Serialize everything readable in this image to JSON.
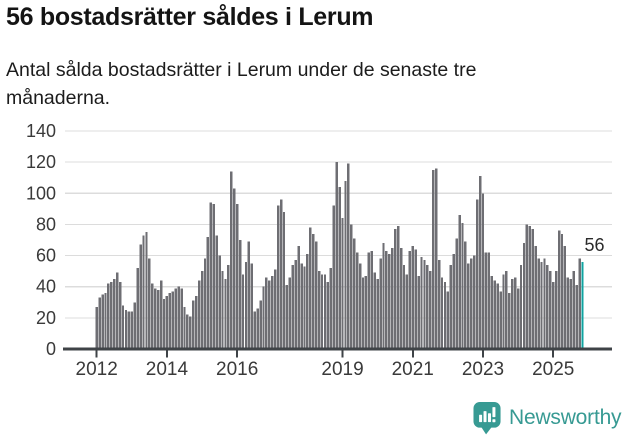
{
  "header": {
    "title": "56 bostadsrätter såldes i Lerum",
    "subtitle": "Antal sålda bostadsrätter i Lerum under de senaste tre månaderna.",
    "subtitle_lines": [
      "Antal sålda bostadsrätter i Lerum under de senaste tre",
      "månaderna."
    ]
  },
  "chart_data": {
    "type": "bar",
    "title": "56 bostadsrätter såldes i Lerum",
    "xlabel": "",
    "ylabel": "",
    "ylim": [
      0,
      140
    ],
    "grid": true,
    "legend": false,
    "frequency": "monthly",
    "start_year_label": "2012",
    "y_ticks": [
      0,
      20,
      40,
      60,
      80,
      100,
      120,
      140
    ],
    "x_ticks": [
      {
        "label": "2012",
        "month_index": 0
      },
      {
        "label": "2014",
        "month_index": 24
      },
      {
        "label": "2016",
        "month_index": 48
      },
      {
        "label": "2019",
        "month_index": 84
      },
      {
        "label": "2021",
        "month_index": 108
      },
      {
        "label": "2023",
        "month_index": 132
      },
      {
        "label": "2025",
        "month_index": 156
      }
    ],
    "values": [
      27,
      33,
      35,
      36,
      42,
      43,
      45,
      49,
      43,
      28,
      25,
      24,
      24,
      30,
      52,
      67,
      73,
      75,
      58,
      42,
      39,
      38,
      44,
      32,
      34,
      36,
      37,
      39,
      40,
      39,
      27,
      22,
      21,
      31,
      34,
      44,
      50,
      58,
      72,
      94,
      93,
      73,
      60,
      50,
      45,
      54,
      114,
      103,
      93,
      70,
      48,
      56,
      69,
      55,
      24,
      26,
      31,
      40,
      46,
      44,
      47,
      51,
      92,
      96,
      88,
      41,
      46,
      54,
      57,
      66,
      55,
      53,
      61,
      78,
      74,
      69,
      50,
      48,
      48,
      43,
      52,
      92,
      120,
      104,
      84,
      108,
      119,
      80,
      71,
      62,
      55,
      46,
      47,
      62,
      63,
      49,
      45,
      58,
      68,
      63,
      61,
      65,
      77,
      79,
      65,
      54,
      48,
      63,
      66,
      64,
      47,
      59,
      57,
      54,
      50,
      115,
      116,
      57,
      46,
      43,
      37,
      54,
      61,
      71,
      86,
      81,
      69,
      55,
      58,
      60,
      96,
      111,
      100,
      62,
      62,
      47,
      44,
      42,
      37,
      48,
      50,
      36,
      45,
      46,
      39,
      54,
      68,
      80,
      79,
      77,
      66,
      58,
      56,
      58,
      54,
      50,
      43,
      50,
      76,
      74,
      66,
      46,
      45,
      50,
      41,
      58,
      56
    ],
    "highlight": {
      "index": 166,
      "value": 56,
      "label": "56"
    }
  },
  "colors": {
    "bar": "#6E6E73",
    "bar_highlight": "#0FA3A0",
    "grid": "#DCDCDC",
    "axis": "#3F4347",
    "tick_text": "#3A3A3A",
    "title_text": "#141414",
    "subtitle_text": "#1C1C1C",
    "annotation_text": "#2B2B2B",
    "logo": "#379A93"
  },
  "footer": {
    "brand": "Newsworthy"
  },
  "icons": {
    "logo_icon": "newsworthy-speech-bubble-bar-chart-icon"
  }
}
